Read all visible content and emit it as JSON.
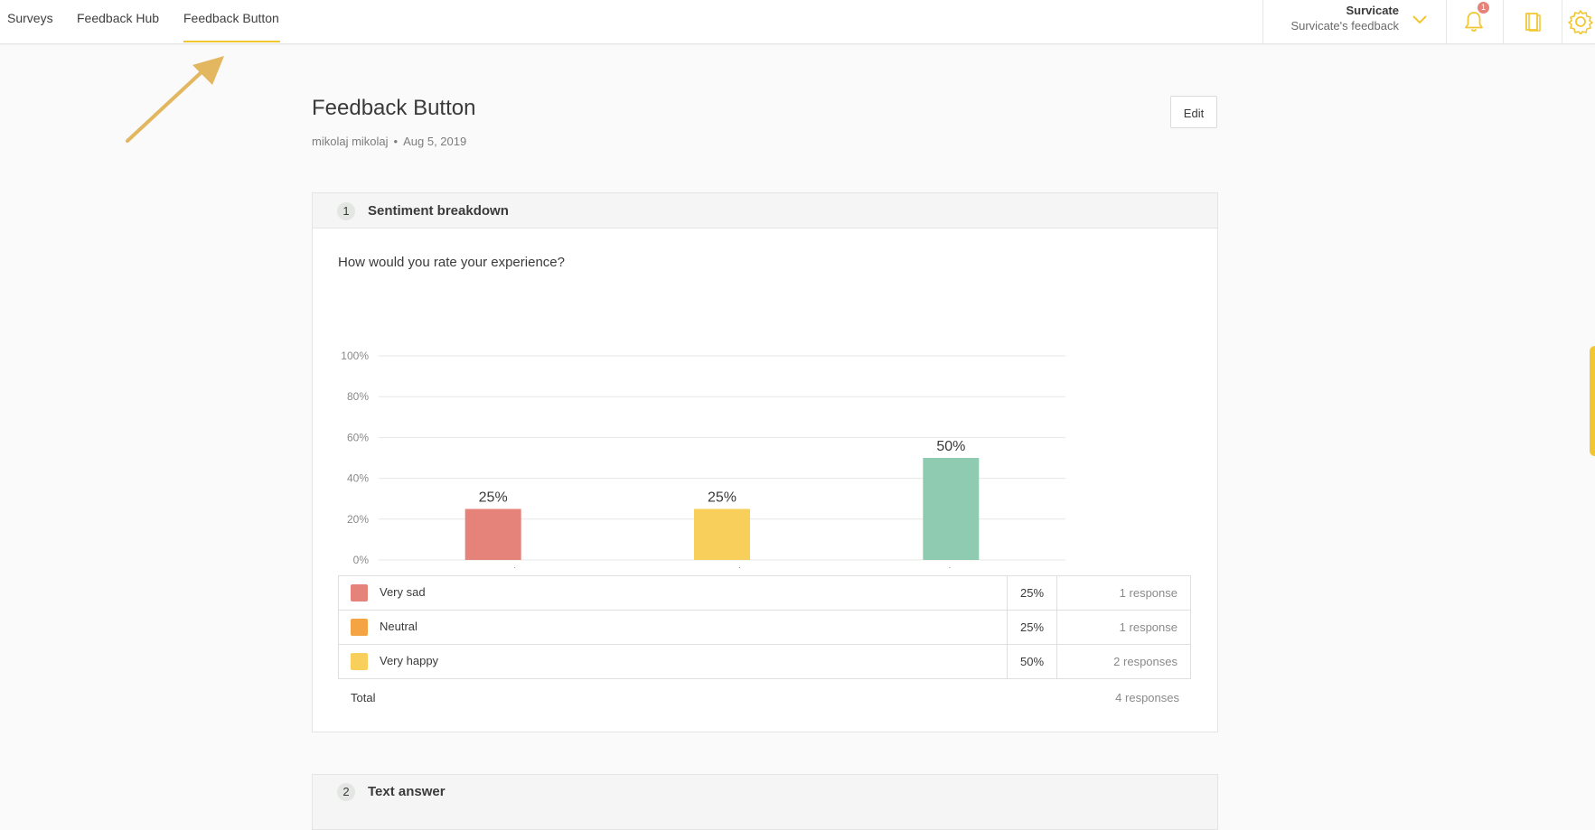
{
  "nav": {
    "tabs": [
      {
        "label": "Surveys",
        "active": false
      },
      {
        "label": "Feedback Hub",
        "active": false
      },
      {
        "label": "Feedback Button",
        "active": true
      }
    ]
  },
  "account": {
    "name": "Survicate",
    "subtitle": "Survicate's feedback"
  },
  "notifications": {
    "count": "1"
  },
  "page": {
    "title": "Feedback Button",
    "author": "mikolaj mikolaj",
    "separator": "•",
    "date": "Aug 5, 2019",
    "edit_label": "Edit"
  },
  "question1": {
    "number": "1",
    "section_title": "Sentiment breakdown",
    "question_text": "How would you rate your experience?",
    "rows": [
      {
        "label": "Very sad",
        "percent": "25%",
        "responses": "1 response",
        "color": "#e5837a"
      },
      {
        "label": "Neutral",
        "percent": "25%",
        "responses": "1 response",
        "color": "#f4a443"
      },
      {
        "label": "Very happy",
        "percent": "50%",
        "responses": "2 responses",
        "color": "#f8cf5b"
      }
    ],
    "total_label": "Total",
    "total_value": "4 responses"
  },
  "question2": {
    "number": "2",
    "section_title": "Text answer"
  },
  "chart_data": {
    "type": "bar",
    "categories": [
      "Very sad",
      "Neutral",
      "Very happy"
    ],
    "values": [
      25,
      25,
      50
    ],
    "data_labels": [
      "25%",
      "25%",
      "50%"
    ],
    "colors": [
      "#e5837a",
      "#f8cf5b",
      "#8ecbb1"
    ],
    "y_ticks": [
      "0%",
      "20%",
      "40%",
      "60%",
      "80%",
      "100%"
    ],
    "ylim": [
      0,
      100
    ],
    "title": "",
    "xlabel": "",
    "ylabel": "",
    "grid": true
  },
  "colors": {
    "accent": "#f2c631",
    "badge": "#e5837a"
  }
}
